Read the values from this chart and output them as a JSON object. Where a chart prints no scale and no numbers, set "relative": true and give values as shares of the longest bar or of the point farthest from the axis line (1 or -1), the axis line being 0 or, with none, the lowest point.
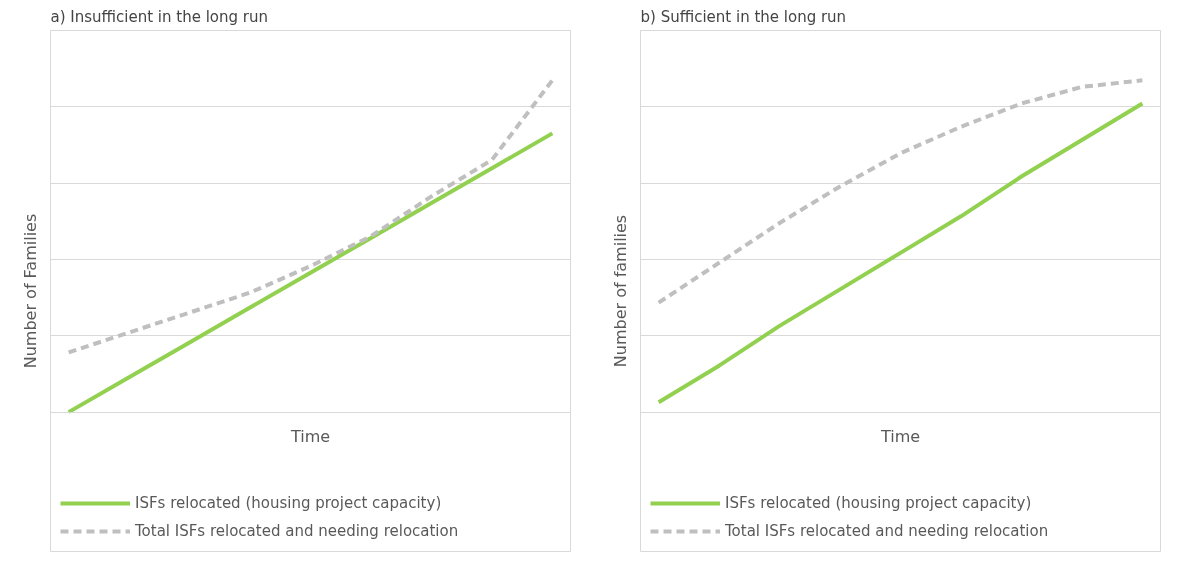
{
  "chart_data": [
    {
      "type": "line",
      "title": "a)    Insufficient in the long run",
      "xlabel": "Time",
      "ylabel": "Number of Families",
      "relative": true,
      "grid": "y",
      "legend": "bottom",
      "marker": "none",
      "categories": [
        null,
        null,
        null,
        null,
        null,
        null,
        null,
        null,
        null
      ],
      "series": [
        {
          "name": "ISFs relocated (housing project capacity)",
          "color": "#92d050",
          "line_style": "solid",
          "values": [
            0,
            0.105,
            0.21,
            0.315,
            0.42,
            0.525,
            0.63,
            0.735,
            0.84
          ]
        },
        {
          "name": "Total ISFs relocated and needing relocation",
          "color": "#bfbfbf",
          "line_style": "dashed",
          "values": [
            0.18,
            0.24,
            0.3,
            0.36,
            0.44,
            0.53,
            0.65,
            0.76,
            1.0
          ]
        }
      ]
    },
    {
      "type": "line",
      "title": "b) Sufficient in the long run",
      "xlabel": "Time",
      "ylabel": "Number of families",
      "relative": true,
      "grid": "y",
      "legend": "bottom",
      "marker": "none",
      "categories": [
        null,
        null,
        null,
        null,
        null,
        null,
        null,
        null,
        null
      ],
      "series": [
        {
          "name": "ISFs relocated (housing project capacity)",
          "color": "#92d050",
          "line_style": "solid",
          "values": [
            0.03,
            0.14,
            0.26,
            0.37,
            0.48,
            0.59,
            0.71,
            0.82,
            0.93
          ]
        },
        {
          "name": "Total ISFs relocated and needing relocation",
          "color": "#bfbfbf",
          "line_style": "dashed",
          "values": [
            0.33,
            0.45,
            0.57,
            0.68,
            0.78,
            0.86,
            0.93,
            0.98,
            1.0
          ]
        }
      ]
    }
  ]
}
